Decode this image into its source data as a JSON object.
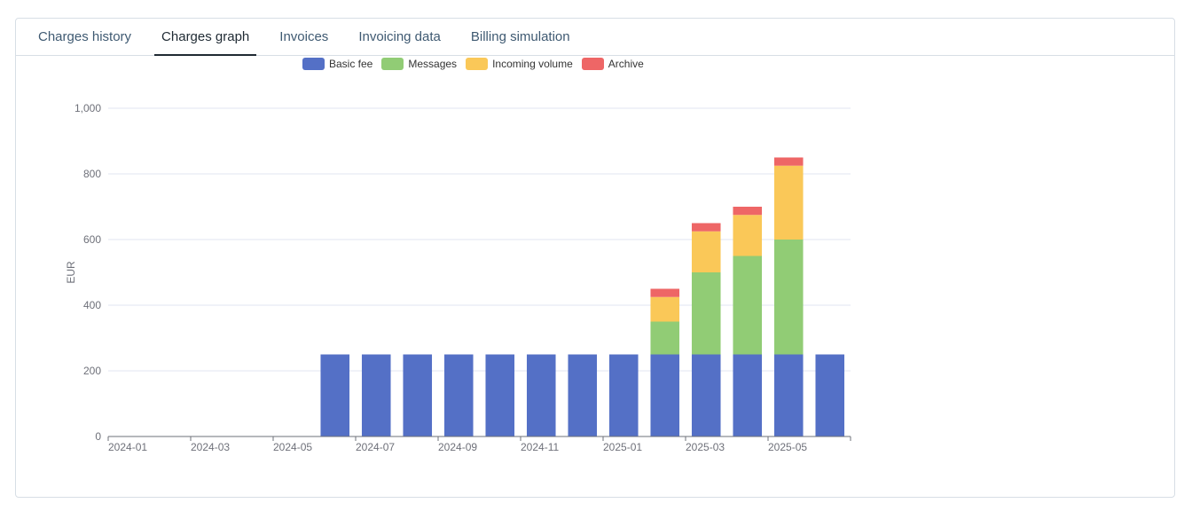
{
  "tabs": [
    {
      "label": "Charges history",
      "active": false
    },
    {
      "label": "Charges graph",
      "active": true
    },
    {
      "label": "Invoices",
      "active": false
    },
    {
      "label": "Invoicing data",
      "active": false
    },
    {
      "label": "Billing simulation",
      "active": false
    }
  ],
  "colors": {
    "basic_fee": "#5470c6",
    "messages": "#91cc75",
    "incoming_volume": "#fac858",
    "archive": "#ee6666"
  },
  "chart_data": {
    "type": "bar",
    "stacked": true,
    "ylabel": "EUR",
    "xlabel": "",
    "ylim": [
      0,
      1000
    ],
    "yticks": [
      0,
      200,
      400,
      600,
      800,
      1000
    ],
    "ytick_labels": [
      "0",
      "200",
      "400",
      "600",
      "800",
      "1,000"
    ],
    "categories": [
      "2024-01",
      "2024-02",
      "2024-03",
      "2024-04",
      "2024-05",
      "2024-06",
      "2024-07",
      "2024-08",
      "2024-09",
      "2024-10",
      "2024-11",
      "2024-12",
      "2025-01",
      "2025-02",
      "2025-03",
      "2025-04",
      "2025-05",
      "2025-06"
    ],
    "xtick_labels": [
      "2024-01",
      "2024-03",
      "2024-05",
      "2024-07",
      "2024-09",
      "2024-11",
      "2025-01",
      "2025-03",
      "2025-05"
    ],
    "legend_position": "top",
    "grid": true,
    "series": [
      {
        "name": "Basic fee",
        "color": "#5470c6",
        "values": [
          0,
          0,
          0,
          0,
          0,
          250,
          250,
          250,
          250,
          250,
          250,
          250,
          250,
          250,
          250,
          250,
          250,
          250
        ]
      },
      {
        "name": "Messages",
        "color": "#91cc75",
        "values": [
          0,
          0,
          0,
          0,
          0,
          0,
          0,
          0,
          0,
          0,
          0,
          0,
          0,
          100,
          250,
          300,
          350,
          0
        ]
      },
      {
        "name": "Incoming volume",
        "color": "#fac858",
        "values": [
          0,
          0,
          0,
          0,
          0,
          0,
          0,
          0,
          0,
          0,
          0,
          0,
          0,
          75,
          125,
          125,
          225,
          0
        ]
      },
      {
        "name": "Archive",
        "color": "#ee6666",
        "values": [
          0,
          0,
          0,
          0,
          0,
          0,
          0,
          0,
          0,
          0,
          0,
          0,
          0,
          25,
          25,
          25,
          25,
          0
        ]
      }
    ]
  }
}
